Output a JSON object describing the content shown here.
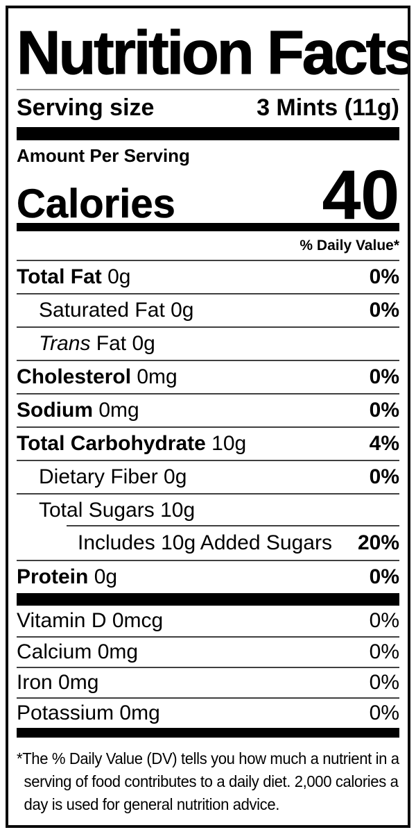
{
  "title": "Nutrition Facts",
  "serving": {
    "label": "Serving size",
    "value": "3 Mints (11g)"
  },
  "amount_per_serving": "Amount Per Serving",
  "calories": {
    "label": "Calories",
    "value": "40"
  },
  "daily_value_header": "% Daily Value*",
  "rows": [
    {
      "bold": "Total Fat ",
      "reg": "0g",
      "dv": "0%"
    },
    {
      "bold": "",
      "reg": "Saturated Fat 0g",
      "dv": "0%"
    },
    {
      "bold": "",
      "italic": "Trans ",
      "reg": "Fat 0g",
      "dv": ""
    },
    {
      "bold": "Cholesterol ",
      "reg": "0mg",
      "dv": "0%"
    },
    {
      "bold": "Sodium ",
      "reg": "0mg",
      "dv": "0%"
    },
    {
      "bold": "Total Carbohydrate ",
      "reg": "10g",
      "dv": "4%"
    },
    {
      "bold": "",
      "reg": "Dietary Fiber 0g",
      "dv": "0%"
    },
    {
      "bold": "",
      "reg": "Total Sugars 10g",
      "dv": ""
    },
    {
      "bold": "",
      "reg": "Includes 10g Added Sugars",
      "dv": "20%"
    },
    {
      "bold": "Protein ",
      "reg": "0g",
      "dv": "0%"
    }
  ],
  "vitamins": [
    {
      "reg": "Vitamin D 0mcg",
      "dv": "0%"
    },
    {
      "reg": "Calcium 0mg",
      "dv": "0%"
    },
    {
      "reg": "Iron 0mg",
      "dv": "0%"
    },
    {
      "reg": "Potassium 0mg",
      "dv": "0%"
    }
  ],
  "footnote": {
    "lines": [
      "*The % Daily Value (DV) tells you how much a nutrient in a",
      "serving of food contributes to a daily diet. 2,000 calories a",
      "day is used for general nutrition advice."
    ]
  },
  "colors": {
    "ink": "#000000",
    "hairline": "#3f3f3f",
    "bar": "#000000"
  }
}
